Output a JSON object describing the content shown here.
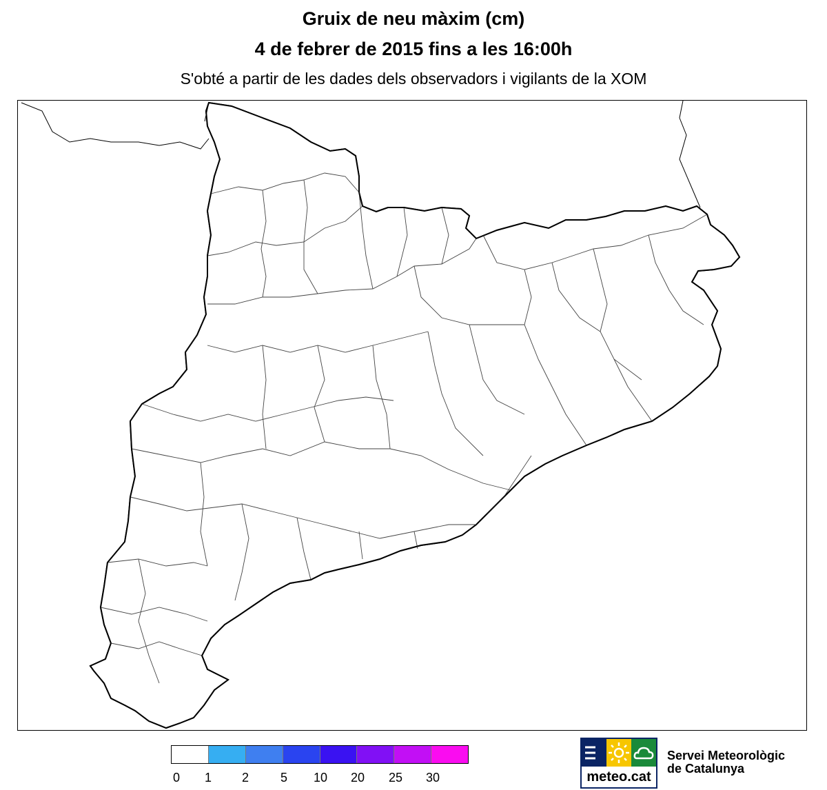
{
  "title": {
    "line1": "Gruix de neu màxim (cm)",
    "line2": "4 de febrer de 2015 fins a les 16:00h",
    "subtitle": "S'obté a partir de les dades dels observadors i vigilants de la XOM"
  },
  "map": {
    "region": "Catalunya",
    "variable": "Gruix de neu màxim",
    "unit": "cm"
  },
  "legend": {
    "classes": [
      {
        "from": "0",
        "to": "1",
        "color": "#ffffff"
      },
      {
        "from": "1",
        "to": "2",
        "color": "#36aef2"
      },
      {
        "from": "2",
        "to": "5",
        "color": "#3f7ff0"
      },
      {
        "from": "5",
        "to": "10",
        "color": "#2a44f0"
      },
      {
        "from": "10",
        "to": "20",
        "color": "#3a12f2"
      },
      {
        "from": "20",
        "to": "25",
        "color": "#8110f5"
      },
      {
        "from": "25",
        "to": "30",
        "color": "#c20ff5"
      },
      {
        "from": "30",
        "to": "",
        "color": "#fa0cf0"
      }
    ],
    "ticks": [
      "0",
      "1",
      "2",
      "5",
      "10",
      "20",
      "25",
      "30"
    ]
  },
  "logo": {
    "name": "meteo.cat",
    "icons": [
      "menu-lines-icon",
      "sun-icon",
      "cloud-icon"
    ],
    "colors": {
      "navy": "#0a2464",
      "yellow": "#f7c600",
      "green": "#1a8a3a"
    }
  },
  "organization": {
    "line1": "Servei Meteorològic",
    "line2": "de Catalunya"
  }
}
